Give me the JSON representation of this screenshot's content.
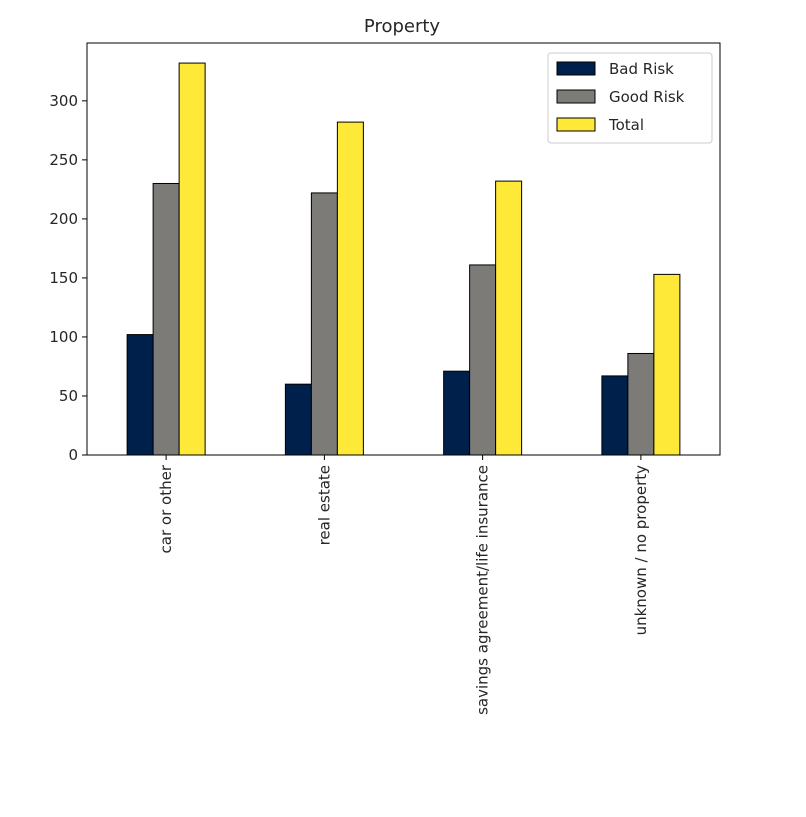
{
  "chart_data": {
    "type": "bar",
    "title": "Property",
    "xlabel": "",
    "ylabel": "",
    "categories": [
      "car or other",
      "real estate",
      "savings agreement/life insurance",
      "unknown / no property"
    ],
    "series": [
      {
        "name": "Bad Risk",
        "values": [
          102,
          60,
          71,
          67
        ],
        "color": "#00204c"
      },
      {
        "name": "Good Risk",
        "values": [
          230,
          222,
          161,
          86
        ],
        "color": "#7c7b78"
      },
      {
        "name": "Total",
        "values": [
          332,
          282,
          232,
          153
        ],
        "color": "#fee838"
      }
    ],
    "ylim": [
      0,
      349
    ],
    "yticks": [
      0,
      50,
      100,
      150,
      200,
      250,
      300
    ],
    "grid": false,
    "legend_position": "top-right",
    "bar_edge_color": "#000000"
  }
}
